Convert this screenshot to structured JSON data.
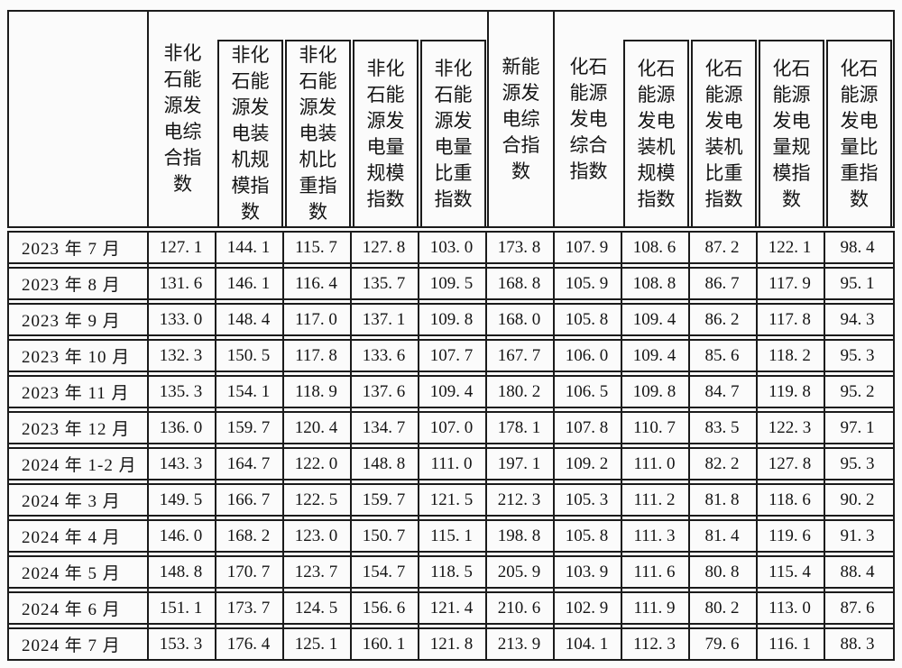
{
  "table": {
    "corner_label": "",
    "colors": {
      "border": "#1b1b1b",
      "text": "#141414",
      "background": "#fbfbfb"
    },
    "columns": [
      {
        "label": "非化石能源发电综合指数",
        "boxed": false
      },
      {
        "label": "非化石能源发电装机规模指数",
        "boxed": true
      },
      {
        "label": "非化石能源发电装机比重指数",
        "boxed": true
      },
      {
        "label": "非化石能源发电量规模指数",
        "boxed": true
      },
      {
        "label": "非化石能源发电量比重指数",
        "boxed": true
      },
      {
        "label": "新能源发电综合指数",
        "boxed": false
      },
      {
        "label": "化石能源发电综合指数",
        "boxed": false
      },
      {
        "label": "化石能源发电装机规模指数",
        "boxed": true
      },
      {
        "label": "化石能源发电装机比重指数",
        "boxed": true
      },
      {
        "label": "化石能源发电量规模指数",
        "boxed": true
      },
      {
        "label": "化石能源发电量比重指数",
        "boxed": true
      }
    ],
    "rows": [
      {
        "period": "2023 年 7 月",
        "values": [
          "127.1",
          "144.1",
          "115.7",
          "127.8",
          "103.0",
          "173.8",
          "107.9",
          "108.6",
          "87.2",
          "122.1",
          "98.4"
        ]
      },
      {
        "period": "2023 年 8 月",
        "values": [
          "131.6",
          "146.1",
          "116.4",
          "135.7",
          "109.5",
          "168.8",
          "105.9",
          "108.8",
          "86.7",
          "117.9",
          "95.1"
        ]
      },
      {
        "period": "2023 年 9 月",
        "values": [
          "133.0",
          "148.4",
          "117.0",
          "137.1",
          "109.8",
          "168.0",
          "105.8",
          "109.4",
          "86.2",
          "117.8",
          "94.3"
        ]
      },
      {
        "period": "2023 年 10 月",
        "values": [
          "132.3",
          "150.5",
          "117.8",
          "133.6",
          "107.7",
          "167.7",
          "106.0",
          "109.4",
          "85.6",
          "118.2",
          "95.3"
        ]
      },
      {
        "period": "2023 年 11 月",
        "values": [
          "135.3",
          "154.1",
          "118.9",
          "137.6",
          "109.4",
          "180.2",
          "106.5",
          "109.8",
          "84.7",
          "119.8",
          "95.2"
        ]
      },
      {
        "period": "2023 年 12 月",
        "values": [
          "136.0",
          "159.7",
          "120.4",
          "134.7",
          "107.0",
          "178.1",
          "107.8",
          "110.7",
          "83.5",
          "122.3",
          "97.1"
        ]
      },
      {
        "period": "2024 年 1-2 月",
        "values": [
          "143.3",
          "164.7",
          "122.0",
          "148.8",
          "111.0",
          "197.1",
          "109.2",
          "111.0",
          "82.2",
          "127.8",
          "95.3"
        ]
      },
      {
        "period": "2024 年 3 月",
        "values": [
          "149.5",
          "166.7",
          "122.5",
          "159.7",
          "121.5",
          "212.3",
          "105.3",
          "111.2",
          "81.8",
          "118.6",
          "90.2"
        ]
      },
      {
        "period": "2024 年 4 月",
        "values": [
          "146.0",
          "168.2",
          "123.0",
          "150.7",
          "115.1",
          "198.8",
          "105.8",
          "111.3",
          "81.4",
          "119.6",
          "91.3"
        ]
      },
      {
        "period": "2024 年 5 月",
        "values": [
          "148.8",
          "170.7",
          "123.7",
          "154.7",
          "118.5",
          "205.9",
          "103.9",
          "111.6",
          "80.8",
          "115.4",
          "88.4"
        ]
      },
      {
        "period": "2024 年 6 月",
        "values": [
          "151.1",
          "173.7",
          "124.5",
          "156.6",
          "121.4",
          "210.6",
          "102.9",
          "111.9",
          "80.2",
          "113.0",
          "87.6"
        ]
      },
      {
        "period": "2024 年 7 月",
        "values": [
          "153.3",
          "176.4",
          "125.1",
          "160.1",
          "121.8",
          "213.9",
          "104.1",
          "112.3",
          "79.6",
          "116.1",
          "88.3"
        ]
      }
    ]
  }
}
